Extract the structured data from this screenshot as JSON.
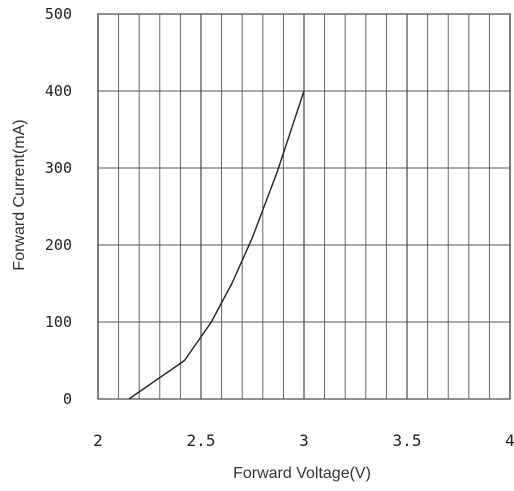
{
  "chart_data": {
    "type": "line",
    "title": "",
    "xlabel": "Forward Voltage(V)",
    "ylabel": "Forward Current(mA)",
    "xlim": [
      2,
      4
    ],
    "ylim": [
      0,
      500
    ],
    "x_ticks": [
      2,
      2.5,
      3,
      3.5,
      4
    ],
    "x_tick_labels": [
      "2",
      "2.5",
      "3",
      "3.5",
      "4"
    ],
    "y_ticks": [
      0,
      100,
      200,
      300,
      400,
      500
    ],
    "y_tick_labels": [
      "0",
      "100",
      "200",
      "300",
      "400",
      "500"
    ],
    "grid": true,
    "x_minor_step": 0.1,
    "line_color": "#222222",
    "grid_color": "#555555",
    "series": [
      {
        "x": [
          2.15,
          2.42,
          2.55,
          2.65,
          2.75,
          2.87,
          3.0
        ],
        "y": [
          0,
          50,
          100,
          150,
          210,
          295,
          400
        ]
      }
    ]
  }
}
